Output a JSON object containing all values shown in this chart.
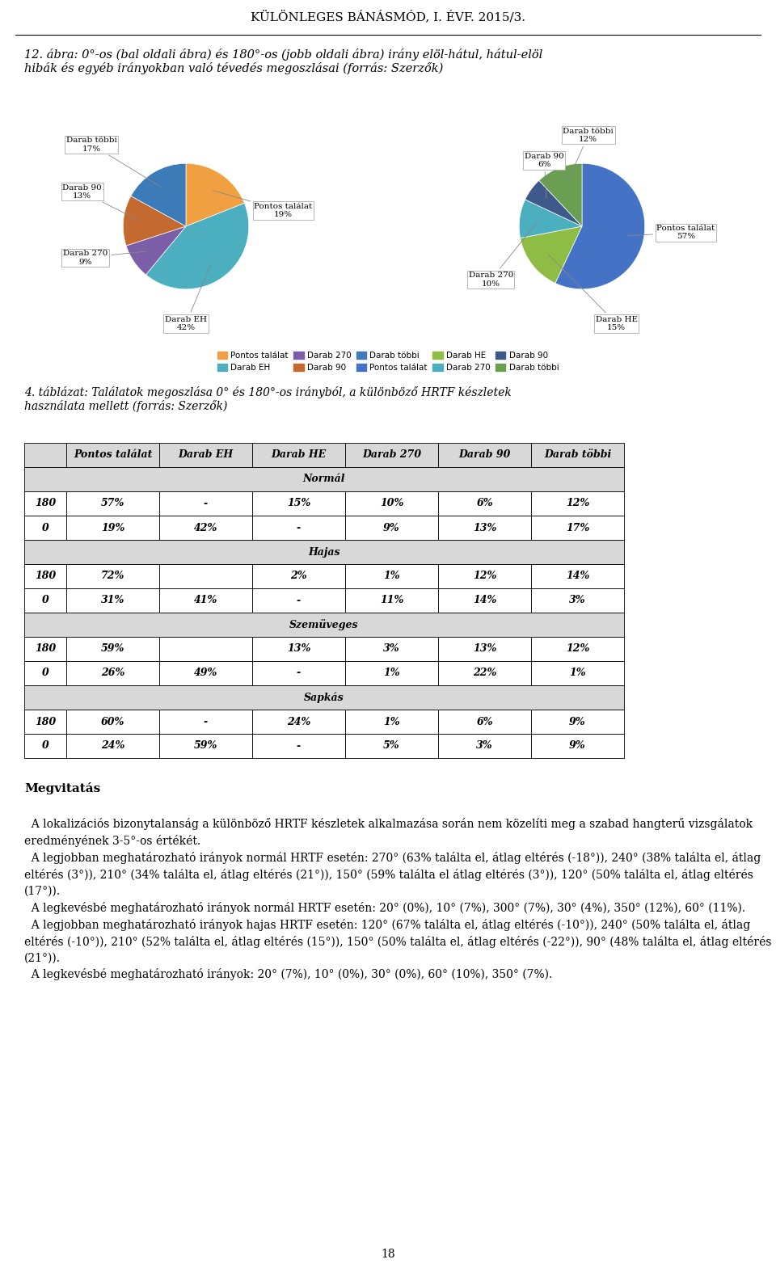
{
  "page_title": "KÜLÖNLEGES BÁNÁSMÓD, I. ÉVF. 2015/3.",
  "pie1": {
    "values": [
      19,
      42,
      9,
      13,
      17
    ],
    "colors": [
      "#f0a040",
      "#4bafc0",
      "#7b5ea7",
      "#c46a30",
      "#3d7ab8"
    ],
    "labels": [
      "Pontos találat\n19%",
      "Darab EH\n42%",
      "Darab 270\n9%",
      "Darab 90\n13%",
      "Darab többi\n17%"
    ]
  },
  "pie2": {
    "values": [
      57,
      15,
      10,
      6,
      12
    ],
    "colors": [
      "#4472c4",
      "#8fbc45",
      "#4bafc0",
      "#3d5a8a",
      "#6a9e50"
    ],
    "labels": [
      "Pontos találat\n57%",
      "Darab HE\n15%",
      "Darab 270\n10%",
      "Darab 90\n6%",
      "Darab többi\n12%"
    ]
  },
  "legend1_labels": [
    "Pontos találat",
    "Darab EH",
    "Darab 270",
    "Darab 90",
    "Darab többi"
  ],
  "legend1_colors": [
    "#f0a040",
    "#4bafc0",
    "#7b5ea7",
    "#c46a30",
    "#3d7ab8"
  ],
  "legend2_labels": [
    "Pontos találat",
    "Darab HE",
    "Darab 270",
    "Darab 90",
    "Darab többi"
  ],
  "legend2_colors": [
    "#4472c4",
    "#8fbc45",
    "#4bafc0",
    "#3d5a8a",
    "#6a9e50"
  ],
  "table_headers": [
    "",
    "Pontos találat",
    "Darab EH",
    "Darab HE",
    "Darab 270",
    "Darab 90",
    "Darab többi"
  ],
  "table_data": [
    {
      "group": "Normál",
      "rows": [
        [
          "180",
          "57%",
          "-",
          "15%",
          "10%",
          "6%",
          "12%"
        ],
        [
          "0",
          "19%",
          "42%",
          "-",
          "9%",
          "13%",
          "17%"
        ]
      ]
    },
    {
      "group": "Hajas",
      "rows": [
        [
          "180",
          "72%",
          "",
          "2%",
          "1%",
          "12%",
          "14%"
        ],
        [
          "0",
          "31%",
          "41%",
          "-",
          "11%",
          "14%",
          "3%"
        ]
      ]
    },
    {
      "group": "Szemüveges",
      "rows": [
        [
          "180",
          "59%",
          "",
          "13%",
          "3%",
          "13%",
          "12%"
        ],
        [
          "0",
          "26%",
          "49%",
          "-",
          "1%",
          "22%",
          "1%"
        ]
      ]
    },
    {
      "group": "Sapkás",
      "rows": [
        [
          "180",
          "60%",
          "-",
          "24%",
          "1%",
          "6%",
          "9%"
        ],
        [
          "0",
          "24%",
          "59%",
          "-",
          "5%",
          "3%",
          "9%"
        ]
      ]
    }
  ],
  "page_number": "18"
}
